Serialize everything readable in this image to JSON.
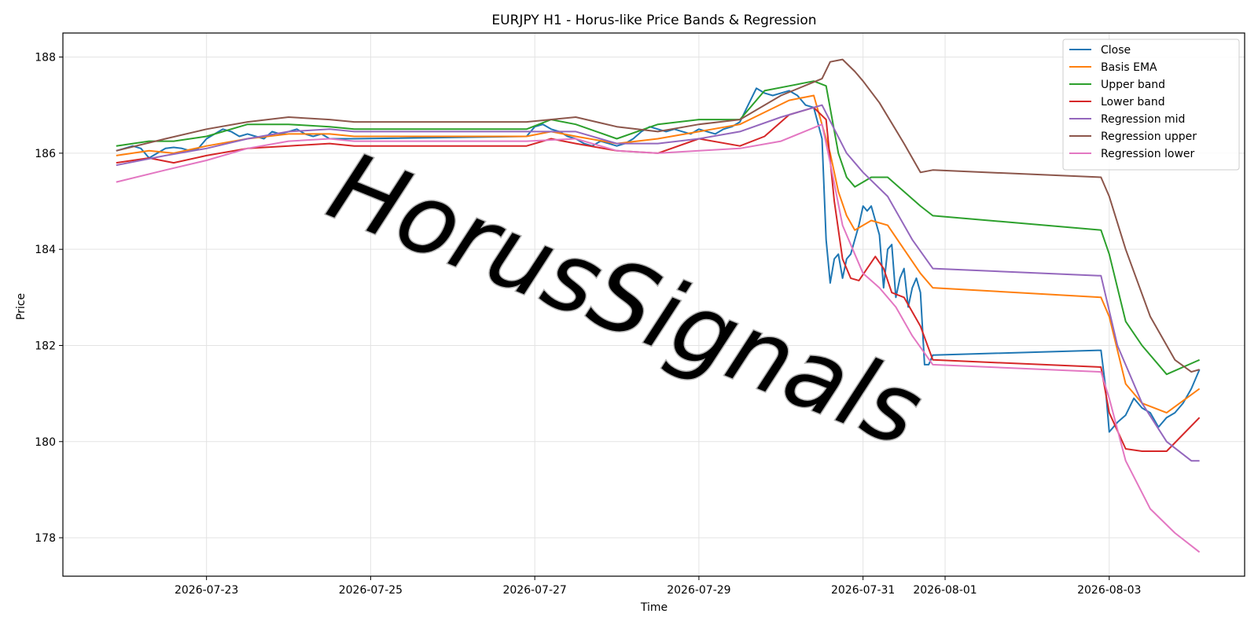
{
  "chart_data": {
    "type": "line",
    "title": "EURJPY H1 - Horus-like Price Bands & Regression",
    "xlabel": "Time",
    "ylabel": "Price",
    "watermark": "HorusSignals",
    "x_tick_labels": [
      "2026-07-23",
      "2026-07-25",
      "2026-07-27",
      "2026-07-29",
      "2026-07-31",
      "2026-08-01",
      "2026-08-03"
    ],
    "x_tick_values": [
      23.0,
      25.0,
      27.0,
      29.0,
      31.0,
      32.0,
      34.0
    ],
    "x_range": [
      21.25,
      35.65
    ],
    "ylim": [
      177.2,
      188.5
    ],
    "y_ticks": [
      178,
      180,
      182,
      184,
      186,
      188
    ],
    "grid": true,
    "legend_position": "top-right",
    "series": [
      {
        "name": "Close",
        "color": "#1f77b4",
        "x": [
          21.9,
          22.0,
          22.1,
          22.2,
          22.3,
          22.4,
          22.5,
          22.6,
          22.7,
          22.8,
          22.9,
          23.0,
          23.1,
          23.2,
          23.3,
          23.4,
          23.5,
          23.6,
          23.7,
          23.8,
          23.9,
          24.0,
          24.1,
          24.2,
          24.3,
          24.4,
          24.5,
          24.6,
          24.7,
          24.8,
          26.9,
          27.0,
          27.1,
          27.2,
          27.3,
          27.4,
          27.5,
          27.6,
          27.7,
          27.8,
          27.9,
          28.0,
          28.1,
          28.2,
          28.3,
          28.4,
          28.5,
          28.6,
          28.7,
          28.8,
          28.9,
          29.0,
          29.1,
          29.2,
          29.3,
          29.4,
          29.5,
          29.6,
          29.7,
          29.8,
          29.9,
          30.0,
          30.1,
          30.2,
          30.3,
          30.4,
          30.5,
          30.55,
          30.6,
          30.65,
          30.7,
          30.75,
          30.8,
          30.85,
          30.9,
          30.95,
          31.0,
          31.05,
          31.1,
          31.15,
          31.2,
          31.25,
          31.3,
          31.35,
          31.4,
          31.45,
          31.5,
          31.55,
          31.6,
          31.65,
          31.7,
          31.75,
          31.8,
          31.85,
          33.9,
          33.95,
          34.0,
          34.1,
          34.2,
          34.3,
          34.4,
          34.5,
          34.6,
          34.7,
          34.8,
          34.9,
          35.0,
          35.1
        ],
        "values": [
          186.05,
          186.1,
          186.15,
          186.1,
          185.9,
          186.0,
          186.1,
          186.12,
          186.1,
          186.05,
          186.1,
          186.3,
          186.4,
          186.5,
          186.45,
          186.35,
          186.4,
          186.35,
          186.3,
          186.45,
          186.4,
          186.45,
          186.5,
          186.4,
          186.35,
          186.4,
          186.3,
          186.3,
          186.3,
          186.3,
          186.35,
          186.55,
          186.6,
          186.5,
          186.45,
          186.35,
          186.3,
          186.2,
          186.15,
          186.25,
          186.2,
          186.15,
          186.2,
          186.3,
          186.45,
          186.55,
          186.5,
          186.45,
          186.5,
          186.45,
          186.4,
          186.5,
          186.45,
          186.4,
          186.5,
          186.55,
          186.65,
          187.0,
          187.35,
          187.25,
          187.2,
          187.25,
          187.3,
          187.2,
          187.0,
          186.95,
          186.3,
          184.2,
          183.3,
          183.8,
          183.9,
          183.4,
          183.8,
          183.9,
          184.2,
          184.5,
          184.9,
          184.8,
          184.9,
          184.6,
          184.3,
          183.2,
          184.0,
          184.1,
          183.0,
          183.4,
          183.6,
          182.8,
          183.2,
          183.4,
          183.1,
          181.6,
          181.6,
          181.8,
          181.9,
          181.2,
          180.2,
          180.4,
          180.55,
          180.9,
          180.7,
          180.6,
          180.3,
          180.5,
          180.6,
          180.8,
          181.1,
          181.5
        ]
      },
      {
        "name": "Basis EMA",
        "color": "#ff7f0e",
        "x": [
          21.9,
          22.3,
          22.6,
          23.0,
          23.5,
          24.0,
          24.5,
          24.8,
          26.9,
          27.2,
          27.5,
          28.0,
          28.5,
          29.0,
          29.5,
          29.8,
          30.1,
          30.4,
          30.6,
          30.7,
          30.8,
          30.9,
          31.0,
          31.1,
          31.3,
          31.5,
          31.7,
          31.85,
          33.9,
          34.0,
          34.2,
          34.4,
          34.7,
          35.1
        ],
        "values": [
          185.95,
          186.05,
          186.0,
          186.15,
          186.3,
          186.4,
          186.4,
          186.35,
          186.35,
          186.45,
          186.35,
          186.2,
          186.3,
          186.45,
          186.6,
          186.85,
          187.1,
          187.2,
          186.0,
          185.2,
          184.7,
          184.4,
          184.5,
          184.6,
          184.5,
          184.0,
          183.5,
          183.2,
          183.0,
          182.6,
          181.2,
          180.8,
          180.6,
          181.1
        ]
      },
      {
        "name": "Upper band",
        "color": "#2ca02c",
        "x": [
          21.9,
          22.3,
          22.6,
          23.0,
          23.5,
          24.0,
          24.5,
          24.8,
          26.9,
          27.2,
          27.5,
          28.0,
          28.5,
          29.0,
          29.5,
          29.8,
          30.1,
          30.4,
          30.55,
          30.7,
          30.8,
          30.9,
          31.0,
          31.1,
          31.3,
          31.5,
          31.7,
          31.85,
          33.9,
          34.0,
          34.2,
          34.4,
          34.7,
          35.1
        ],
        "values": [
          186.15,
          186.25,
          186.25,
          186.35,
          186.6,
          186.6,
          186.55,
          186.5,
          186.5,
          186.7,
          186.6,
          186.3,
          186.6,
          186.7,
          186.7,
          187.3,
          187.4,
          187.5,
          187.4,
          186.0,
          185.5,
          185.3,
          185.4,
          185.5,
          185.5,
          185.2,
          184.9,
          184.7,
          184.4,
          183.9,
          182.5,
          182.0,
          181.4,
          181.7
        ]
      },
      {
        "name": "Lower band",
        "color": "#d62728",
        "x": [
          21.9,
          22.3,
          22.6,
          23.0,
          23.5,
          24.0,
          24.5,
          24.8,
          26.9,
          27.2,
          27.5,
          28.0,
          28.5,
          29.0,
          29.5,
          29.8,
          30.1,
          30.4,
          30.55,
          30.65,
          30.75,
          30.85,
          30.95,
          31.05,
          31.15,
          31.25,
          31.35,
          31.5,
          31.7,
          31.85,
          33.9,
          34.0,
          34.2,
          34.4,
          34.7,
          35.1
        ],
        "values": [
          185.8,
          185.9,
          185.8,
          185.95,
          186.1,
          186.15,
          186.2,
          186.15,
          186.15,
          186.3,
          186.2,
          186.05,
          186.0,
          186.3,
          186.15,
          186.35,
          186.8,
          186.95,
          186.7,
          185.0,
          183.8,
          183.4,
          183.35,
          183.6,
          183.85,
          183.6,
          183.1,
          183.0,
          182.4,
          181.7,
          181.55,
          180.6,
          179.85,
          179.8,
          179.8,
          180.5
        ]
      },
      {
        "name": "Regression mid",
        "color": "#9467bd",
        "x": [
          21.9,
          22.5,
          23.0,
          23.5,
          24.0,
          24.5,
          24.8,
          26.9,
          27.5,
          28.0,
          28.5,
          29.0,
          29.5,
          30.0,
          30.5,
          30.8,
          31.0,
          31.3,
          31.6,
          31.85,
          33.9,
          34.1,
          34.4,
          34.7,
          35.0,
          35.1
        ],
        "values": [
          185.75,
          185.95,
          186.1,
          186.3,
          186.45,
          186.5,
          186.45,
          186.45,
          186.45,
          186.2,
          186.2,
          186.3,
          186.45,
          186.75,
          187.0,
          186.0,
          185.6,
          185.1,
          184.2,
          183.6,
          183.45,
          182.0,
          180.8,
          180.0,
          179.6,
          179.6
        ]
      },
      {
        "name": "Regression upper",
        "color": "#8c564b",
        "x": [
          21.9,
          22.5,
          23.0,
          23.5,
          24.0,
          24.5,
          24.8,
          26.9,
          27.5,
          28.0,
          28.5,
          29.0,
          29.5,
          30.0,
          30.5,
          30.6,
          30.75,
          30.9,
          31.0,
          31.2,
          31.5,
          31.7,
          31.85,
          33.9,
          34.0,
          34.2,
          34.5,
          34.8,
          35.0,
          35.1
        ],
        "values": [
          186.05,
          186.3,
          186.5,
          186.65,
          186.75,
          186.7,
          186.65,
          186.65,
          186.75,
          186.55,
          186.45,
          186.6,
          186.7,
          187.2,
          187.55,
          187.9,
          187.95,
          187.7,
          187.5,
          187.05,
          186.2,
          185.6,
          185.65,
          185.5,
          185.1,
          184.0,
          182.6,
          181.7,
          181.45,
          181.5
        ]
      },
      {
        "name": "Regression lower",
        "color": "#e377c2",
        "x": [
          21.9,
          22.5,
          23.0,
          23.5,
          24.0,
          24.5,
          24.8,
          26.9,
          27.5,
          28.0,
          28.5,
          29.0,
          29.5,
          30.0,
          30.5,
          30.6,
          30.75,
          30.9,
          31.0,
          31.2,
          31.4,
          31.6,
          31.85,
          33.9,
          34.0,
          34.2,
          34.5,
          34.8,
          35.1
        ],
        "values": [
          185.4,
          185.65,
          185.85,
          186.1,
          186.25,
          186.3,
          186.25,
          186.25,
          186.3,
          186.05,
          186.0,
          186.05,
          186.1,
          186.25,
          186.6,
          185.8,
          184.5,
          183.9,
          183.5,
          183.2,
          182.8,
          182.2,
          181.6,
          181.45,
          180.9,
          179.6,
          178.6,
          178.1,
          177.7
        ]
      }
    ]
  }
}
